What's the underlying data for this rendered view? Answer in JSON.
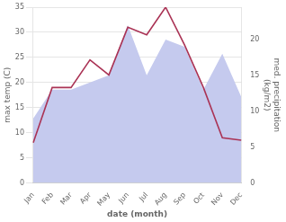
{
  "chart_data": {
    "type": "line",
    "categories": [
      "Jan",
      "Feb",
      "Mar",
      "Apr",
      "May",
      "Jun",
      "Jul",
      "Aug",
      "Sep",
      "Oct",
      "Nov",
      "Dec"
    ],
    "xlabel": "date (month)",
    "ylabel": "max temp (C)",
    "y2label": "med. precipitation\n(kg/m2)",
    "series": [
      {
        "type": "line",
        "color": "#aa3355",
        "values": [
          8.0,
          19.0,
          19.0,
          24.5,
          21.5,
          31.0,
          29.5,
          35.0,
          27.5,
          19.0,
          9.0,
          8.5
        ]
      },
      {
        "type": "area",
        "axis": "y2",
        "color": "#c5caee",
        "values": [
          9.0,
          13.0,
          13.0,
          14.0,
          15.0,
          22.0,
          15.0,
          20.0,
          19.0,
          13.0,
          18.0,
          12.0
        ]
      }
    ],
    "ylim": [
      0,
      35
    ],
    "yticks": [
      0,
      5,
      10,
      15,
      20,
      25,
      30,
      35
    ],
    "y2lim": [
      0,
      24.5
    ],
    "y2ticks": [
      0,
      5,
      10,
      15,
      20
    ],
    "grid": true
  }
}
